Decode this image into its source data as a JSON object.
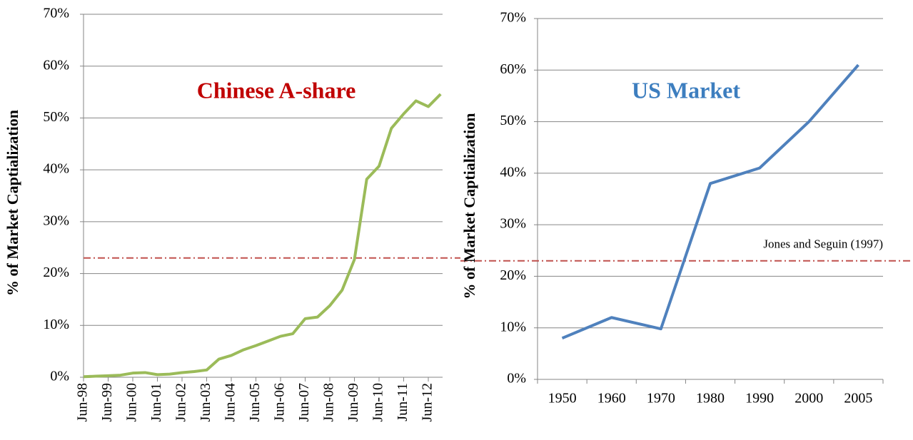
{
  "chart_data": [
    {
      "type": "line",
      "title": "Chinese A-share",
      "title_color": "#c00000",
      "y_label": "% of Market Captialization",
      "categories": [
        "Jun-98",
        null,
        "Jun-99",
        null,
        "Jun-00",
        null,
        "Jun-01",
        null,
        "Jun-02",
        null,
        "Jun-03",
        null,
        "Jun-04",
        null,
        "Jun-05",
        null,
        "Jun-06",
        null,
        "Jun-07",
        null,
        "Jun-08",
        null,
        "Jun-09",
        null,
        "Jun-10",
        null,
        "Jun-11",
        null,
        "Jun-12",
        null
      ],
      "values": [
        0.1,
        0.2,
        0.3,
        0.4,
        0.8,
        0.9,
        0.5,
        0.6,
        0.9,
        1.1,
        1.4,
        3.5,
        4.2,
        5.3,
        6.1,
        7.0,
        7.9,
        8.4,
        11.3,
        11.6,
        13.8,
        16.8,
        22.7,
        38.2,
        40.7,
        48.0,
        50.8,
        53.3,
        52.2,
        54.6
      ],
      "color": "#9bbb59",
      "ylim": [
        0,
        70
      ],
      "yticks": [
        {
          "value": 0,
          "label": "0%"
        },
        {
          "value": 10,
          "label": "10%"
        },
        {
          "value": 20,
          "label": "20%"
        },
        {
          "value": 30,
          "label": "30%"
        },
        {
          "value": 40,
          "label": "40%"
        },
        {
          "value": 50,
          "label": "50%"
        },
        {
          "value": 60,
          "label": "60%"
        },
        {
          "value": 70,
          "label": "70%"
        }
      ],
      "grid": true,
      "reference_line": {
        "value": 23,
        "color": "#c0504d"
      }
    },
    {
      "type": "line",
      "title": "US Market",
      "title_color": "#3d7ebf",
      "y_label": "% of Market Captialization",
      "categories": [
        "1950",
        "1960",
        "1970",
        "1980",
        "1990",
        "2000",
        "2005"
      ],
      "values": [
        8,
        12,
        9.8,
        38,
        41,
        50,
        61
      ],
      "color": "#4f81bd",
      "ylim": [
        0,
        70
      ],
      "yticks": [
        {
          "value": 0,
          "label": "0%"
        },
        {
          "value": 10,
          "label": "10%"
        },
        {
          "value": 20,
          "label": "20%"
        },
        {
          "value": 30,
          "label": "30%"
        },
        {
          "value": 40,
          "label": "40%"
        },
        {
          "value": 50,
          "label": "50%"
        },
        {
          "value": 60,
          "label": "60%"
        },
        {
          "value": 70,
          "label": "70%"
        }
      ],
      "grid": true,
      "reference_line": {
        "value": 23,
        "color": "#c0504d"
      },
      "annotation": "Jones and Seguin (1997)"
    }
  ]
}
